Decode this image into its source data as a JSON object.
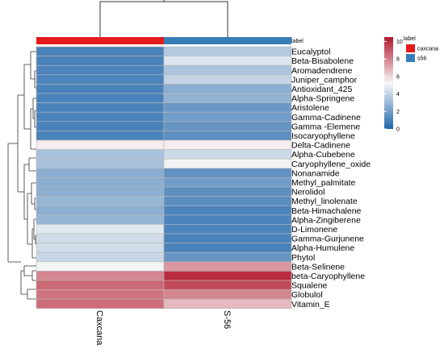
{
  "chart_data": {
    "type": "heatmap",
    "columns": [
      "Caxcana",
      "S-56"
    ],
    "rows": [
      "Eucalyptol",
      "Beta-Bisabolene",
      "Aromadendrene",
      "Juniper_camphor",
      "Antioxidant_425",
      "Alpha-Springene",
      "Aristolene",
      "Gamma-Cadinene",
      "Gamma -Elemene",
      "Isocaryophyllene",
      "Delta-Cadinene",
      "Alpha-Cubebene",
      "Caryophyllene_oxide",
      "Nonanamide",
      "Methyl_palmitate",
      "Nerolidol",
      "Methyl_linolenate",
      "Beta-Himachalene",
      "Alpha-Zingiberene",
      "D-Limonene",
      "Gamma-Gurjunene",
      "Alpha-Humulene",
      "Phytol",
      "Beta-Selinene",
      "beta-Caryophyllene",
      "Squalene",
      "Globulol",
      "Vitamin_E"
    ],
    "values": [
      [
        1.0,
        3.6
      ],
      [
        1.0,
        4.6
      ],
      [
        1.1,
        3.4
      ],
      [
        1.1,
        4.0
      ],
      [
        1.0,
        2.6
      ],
      [
        1.0,
        2.8
      ],
      [
        1.0,
        1.8
      ],
      [
        1.0,
        2.0
      ],
      [
        1.0,
        1.7
      ],
      [
        1.0,
        1.5
      ],
      [
        5.5,
        5.5
      ],
      [
        3.3,
        4.2
      ],
      [
        3.3,
        5.1
      ],
      [
        2.6,
        1.6
      ],
      [
        2.6,
        2.0
      ],
      [
        2.6,
        1.5
      ],
      [
        2.9,
        1.4
      ],
      [
        2.6,
        1.1
      ],
      [
        2.9,
        1.1
      ],
      [
        4.7,
        1.1
      ],
      [
        4.3,
        1.0
      ],
      [
        4.3,
        1.0
      ],
      [
        4.1,
        1.7
      ],
      [
        5.1,
        7.5
      ],
      [
        7.9,
        10.0
      ],
      [
        8.6,
        9.3
      ],
      [
        8.3,
        7.9
      ],
      [
        8.5,
        6.7
      ]
    ],
    "column_annotation": {
      "title": "label",
      "values": [
        "caxcana",
        "s56"
      ],
      "colors": {
        "caxcana": "#e41a1c",
        "s56": "#377eb8"
      }
    },
    "colorbar": {
      "ticks": [
        0,
        2,
        4,
        6,
        8,
        10
      ],
      "range": [
        0,
        10.5
      ],
      "low_color": "#2166ac",
      "mid_color": "#f7f7f7",
      "high_color": "#b2182b"
    },
    "legend": {
      "title": "label",
      "items": [
        "caxcana",
        "s56"
      ]
    }
  }
}
